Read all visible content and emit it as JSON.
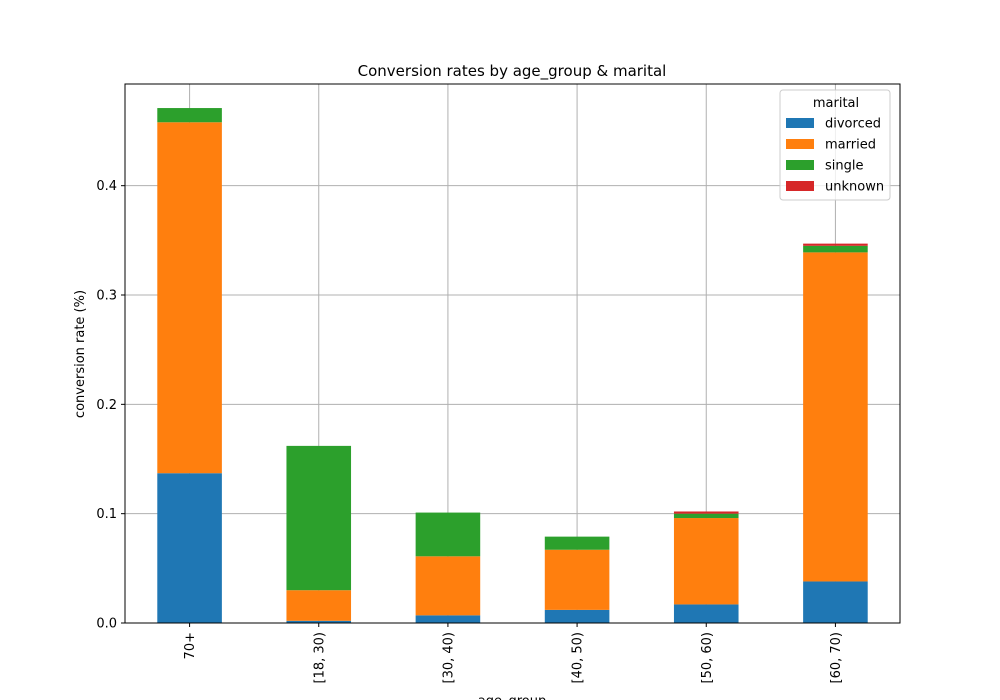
{
  "chart_data": {
    "type": "bar",
    "stacked": true,
    "title": "Conversion rates by age_group & marital",
    "xlabel": "age_group",
    "ylabel": "conversion rate (%)",
    "categories": [
      "70+",
      "[18, 30)",
      "[30, 40)",
      "[40, 50)",
      "[50, 60)",
      "[60, 70)"
    ],
    "ylim": [
      0,
      0.493
    ],
    "yticks": [
      0.0,
      0.1,
      0.2,
      0.3,
      0.4
    ],
    "ytick_labels": [
      "0.0",
      "0.1",
      "0.2",
      "0.3",
      "0.4"
    ],
    "grid": true,
    "legend": {
      "title": "marital",
      "placement": "top-right"
    },
    "series": [
      {
        "name": "divorced",
        "color": "#1f77b4",
        "values": [
          0.137,
          0.002,
          0.007,
          0.012,
          0.017,
          0.038
        ]
      },
      {
        "name": "married",
        "color": "#ff7f0e",
        "values": [
          0.321,
          0.028,
          0.054,
          0.055,
          0.079,
          0.301
        ]
      },
      {
        "name": "single",
        "color": "#2ca02c",
        "values": [
          0.013,
          0.132,
          0.04,
          0.012,
          0.004,
          0.006
        ]
      },
      {
        "name": "unknown",
        "color": "#d62728",
        "values": [
          0.0,
          0.0,
          0.0,
          0.0,
          0.002,
          0.002
        ]
      }
    ]
  }
}
